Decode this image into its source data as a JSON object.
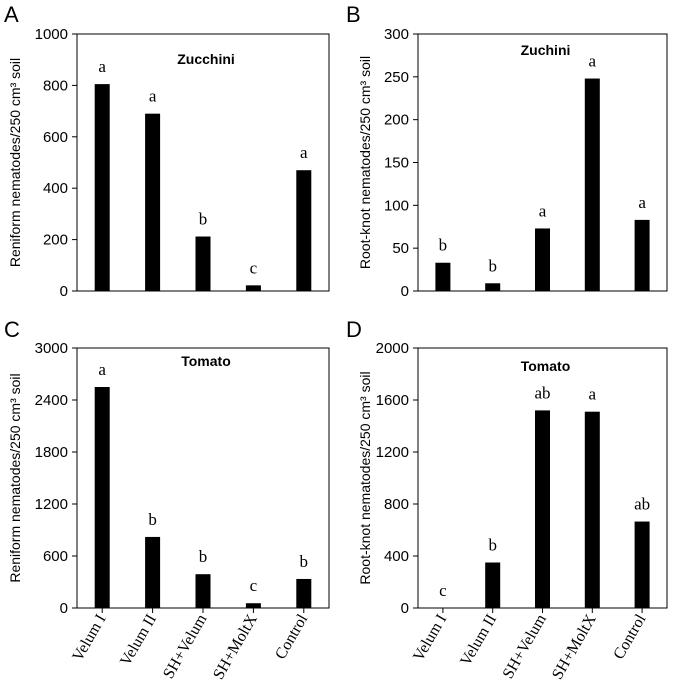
{
  "chart_data": [
    {
      "panel": "A",
      "type": "bar",
      "title": "Zucchini",
      "ylabel": "Reniform nematodes/250 cm³  soil",
      "categories": [
        "Velum I",
        "Velum II",
        "SH+Velum",
        "SH+MoltX",
        "Control"
      ],
      "values": [
        805,
        690,
        212,
        22,
        470
      ],
      "letters": [
        "a",
        "a",
        "b",
        "c",
        "a"
      ],
      "ylim": [
        0,
        1000
      ],
      "yticks": [
        0,
        200,
        400,
        600,
        800,
        1000
      ],
      "ytick_labels": [
        "0",
        "200",
        "400",
        "600",
        "800",
        "1000"
      ],
      "show_xlabels": false
    },
    {
      "panel": "B",
      "type": "bar",
      "title": "Zuchini",
      "ylabel": "Root-knot nematodes/250 cm³  soil",
      "categories": [
        "Velum I",
        "Velum II",
        "SH+Velum",
        "SH+MoltX",
        "Control"
      ],
      "values": [
        33,
        9,
        73,
        248,
        83
      ],
      "letters": [
        "b",
        "b",
        "a",
        "a",
        "a"
      ],
      "ylim": [
        0,
        300
      ],
      "yticks": [
        0,
        50,
        100,
        150,
        200,
        250,
        300
      ],
      "ytick_labels": [
        "0",
        "50",
        "100",
        "150",
        "200",
        "250",
        "300"
      ],
      "show_xlabels": false
    },
    {
      "panel": "C",
      "type": "bar",
      "title": "Tomato",
      "ylabel": "Reniform nematodes/250 cm³  soil",
      "categories": [
        "Velum I",
        "Velum II",
        "SH+Velum",
        "SH+MoltX",
        "Control"
      ],
      "values": [
        2550,
        820,
        390,
        55,
        335
      ],
      "letters": [
        "a",
        "b",
        "b",
        "c",
        "b"
      ],
      "ylim": [
        0,
        3000
      ],
      "yticks": [
        0,
        600,
        1200,
        1800,
        2400,
        3000
      ],
      "ytick_labels": [
        "0",
        "600",
        "1200",
        "1800",
        "2400",
        "3000"
      ],
      "show_xlabels": true
    },
    {
      "panel": "D",
      "type": "bar",
      "title": "Tomato",
      "ylabel": "Root-knot nematodes/250 cm³  soil",
      "categories": [
        "Velum I",
        "Velum II",
        "SH+Velum",
        "SH+MoltX",
        "Control"
      ],
      "values": [
        0,
        350,
        1520,
        1510,
        665
      ],
      "letters": [
        "c",
        "b",
        "ab",
        "a",
        "ab"
      ],
      "ylim": [
        0,
        2000
      ],
      "yticks": [
        0,
        400,
        800,
        1200,
        1600,
        2000
      ],
      "ytick_labels": [
        "0",
        "400",
        "800",
        "1200",
        "1600",
        "2000"
      ],
      "show_xlabels": true
    }
  ],
  "colors": {
    "bar": "#000000",
    "axis": "#000000",
    "background": "#ffffff"
  }
}
